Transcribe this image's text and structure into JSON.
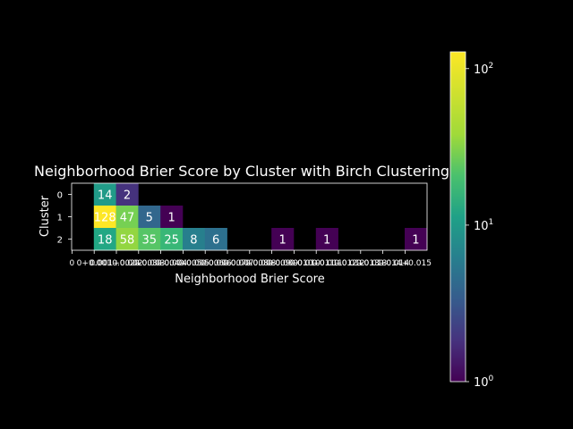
{
  "chart_data": {
    "type": "heatmap",
    "title": "Neighborhood Brier Score by Cluster with Birch Clustering",
    "xlabel": "Neighborhood Brier Score",
    "ylabel": "Cluster",
    "x_tick_labels": [
      "0",
      "0+0.001",
      "0.001+0.002",
      "0.002+0.003",
      "0.003+0.004",
      "0.004+0.005",
      "0.005+0.006",
      "0.006+0.007",
      "0.007+0.008",
      "0.008+0.009",
      "0.009+0.010",
      "0.010+0.011",
      "0.011+0.012",
      "0.012+0.013",
      "0.013+0.014",
      "0.014+0.015"
    ],
    "y_tick_labels": [
      "0",
      "1",
      "2"
    ],
    "cells": [
      {
        "row": 0,
        "col": 1,
        "value": 14
      },
      {
        "row": 0,
        "col": 2,
        "value": 2
      },
      {
        "row": 1,
        "col": 1,
        "value": 128
      },
      {
        "row": 1,
        "col": 2,
        "value": 47
      },
      {
        "row": 1,
        "col": 3,
        "value": 5
      },
      {
        "row": 1,
        "col": 4,
        "value": 1
      },
      {
        "row": 2,
        "col": 1,
        "value": 18
      },
      {
        "row": 2,
        "col": 2,
        "value": 58
      },
      {
        "row": 2,
        "col": 3,
        "value": 35
      },
      {
        "row": 2,
        "col": 4,
        "value": 25
      },
      {
        "row": 2,
        "col": 5,
        "value": 8
      },
      {
        "row": 2,
        "col": 6,
        "value": 6
      },
      {
        "row": 2,
        "col": 9,
        "value": 1
      },
      {
        "row": 2,
        "col": 11,
        "value": 1
      },
      {
        "row": 2,
        "col": 15,
        "value": 1
      }
    ],
    "colorbar": {
      "scale": "log",
      "colormap": "viridis",
      "range": [
        1,
        128
      ],
      "ticks": [
        {
          "value": 1,
          "base": "10",
          "exp": "0"
        },
        {
          "value": 10,
          "base": "10",
          "exp": "1"
        },
        {
          "value": 100,
          "base": "10",
          "exp": "2"
        }
      ]
    },
    "grid": false,
    "background": "#000000",
    "text_color": "#ffffff"
  }
}
